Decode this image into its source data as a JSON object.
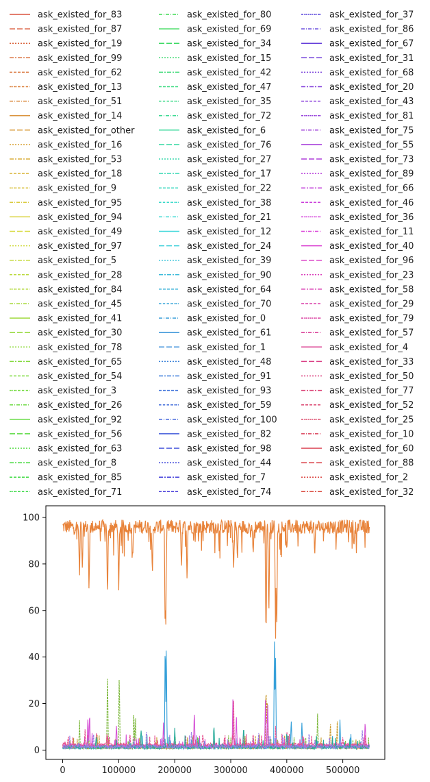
{
  "chart_data": {
    "type": "line",
    "title": "",
    "xlabel": "",
    "ylabel": "",
    "xlim": [
      -30000,
      575000
    ],
    "ylim": [
      -4,
      105
    ],
    "xticks": [
      0,
      100000,
      200000,
      300000,
      400000,
      500000
    ],
    "yticks": [
      0,
      20,
      40,
      60,
      80,
      100
    ],
    "grid": false,
    "legend_position": "top",
    "legend_columns": [
      [
        "ask_existed_for_83",
        "ask_existed_for_87",
        "ask_existed_for_19",
        "ask_existed_for_99",
        "ask_existed_for_62",
        "ask_existed_for_13",
        "ask_existed_for_51",
        "ask_existed_for_14",
        "ask_existed_for_other",
        "ask_existed_for_16",
        "ask_existed_for_53",
        "ask_existed_for_18",
        "ask_existed_for_9",
        "ask_existed_for_95",
        "ask_existed_for_94",
        "ask_existed_for_49",
        "ask_existed_for_97",
        "ask_existed_for_5",
        "ask_existed_for_28",
        "ask_existed_for_84",
        "ask_existed_for_45",
        "ask_existed_for_41",
        "ask_existed_for_30",
        "ask_existed_for_78",
        "ask_existed_for_65",
        "ask_existed_for_54",
        "ask_existed_for_3",
        "ask_existed_for_26",
        "ask_existed_for_92",
        "ask_existed_for_56",
        "ask_existed_for_63",
        "ask_existed_for_8",
        "ask_existed_for_85",
        "ask_existed_for_71"
      ],
      [
        "ask_existed_for_80",
        "ask_existed_for_69",
        "ask_existed_for_34",
        "ask_existed_for_15",
        "ask_existed_for_42",
        "ask_existed_for_47",
        "ask_existed_for_35",
        "ask_existed_for_72",
        "ask_existed_for_6",
        "ask_existed_for_76",
        "ask_existed_for_27",
        "ask_existed_for_17",
        "ask_existed_for_22",
        "ask_existed_for_38",
        "ask_existed_for_21",
        "ask_existed_for_12",
        "ask_existed_for_24",
        "ask_existed_for_39",
        "ask_existed_for_90",
        "ask_existed_for_64",
        "ask_existed_for_70",
        "ask_existed_for_0",
        "ask_existed_for_61",
        "ask_existed_for_1",
        "ask_existed_for_48",
        "ask_existed_for_91",
        "ask_existed_for_93",
        "ask_existed_for_59",
        "ask_existed_for_100",
        "ask_existed_for_82",
        "ask_existed_for_98",
        "ask_existed_for_44",
        "ask_existed_for_7",
        "ask_existed_for_74"
      ],
      [
        "ask_existed_for_37",
        "ask_existed_for_86",
        "ask_existed_for_67",
        "ask_existed_for_31",
        "ask_existed_for_68",
        "ask_existed_for_20",
        "ask_existed_for_43",
        "ask_existed_for_81",
        "ask_existed_for_75",
        "ask_existed_for_55",
        "ask_existed_for_73",
        "ask_existed_for_89",
        "ask_existed_for_66",
        "ask_existed_for_46",
        "ask_existed_for_36",
        "ask_existed_for_11",
        "ask_existed_for_40",
        "ask_existed_for_96",
        "ask_existed_for_23",
        "ask_existed_for_58",
        "ask_existed_for_29",
        "ask_existed_for_79",
        "ask_existed_for_57",
        "ask_existed_for_4",
        "ask_existed_for_33",
        "ask_existed_for_50",
        "ask_existed_for_77",
        "ask_existed_for_52",
        "ask_existed_for_25",
        "ask_existed_for_10",
        "ask_existed_for_60",
        "ask_existed_for_88",
        "ask_existed_for_2",
        "ask_existed_for_32"
      ]
    ],
    "series": [
      {
        "name": "ask_existed_for_other",
        "color": "#e8833a",
        "baseline": 96,
        "noise": 3,
        "dips": [
          [
            30000,
            73
          ],
          [
            35000,
            76
          ],
          [
            47000,
            67
          ],
          [
            80000,
            63
          ],
          [
            100000,
            64
          ],
          [
            125000,
            79
          ],
          [
            160000,
            73
          ],
          [
            183000,
            46
          ],
          [
            184000,
            50
          ],
          [
            212000,
            76
          ],
          [
            222000,
            72
          ],
          [
            305000,
            75
          ],
          [
            312000,
            79
          ],
          [
            340000,
            82
          ],
          [
            363000,
            43
          ],
          [
            368000,
            55
          ],
          [
            380000,
            45
          ],
          [
            382000,
            47
          ],
          [
            400000,
            82
          ],
          [
            450000,
            82
          ],
          [
            520000,
            85
          ]
        ]
      },
      {
        "name": "ask_existed_for_8",
        "color": "#7db83d",
        "baseline": 0.5,
        "peaks": [
          [
            30000,
            12
          ],
          [
            80000,
            34
          ],
          [
            101000,
            34
          ],
          [
            127000,
            17
          ],
          [
            130000,
            14
          ],
          [
            455000,
            14
          ]
        ]
      },
      {
        "name": "ask_existed_for_44",
        "color": "#36a0d9",
        "baseline": 0.5,
        "peaks": [
          [
            183000,
            50
          ],
          [
            185000,
            47
          ],
          [
            378000,
            45
          ],
          [
            380000,
            42
          ],
          [
            408000,
            13
          ],
          [
            427000,
            10
          ],
          [
            495000,
            12
          ]
        ]
      },
      {
        "name": "ask_existed_for_53",
        "color": "#c99a2e",
        "baseline": 0.5,
        "peaks": [
          [
            363000,
            29
          ],
          [
            365000,
            25
          ],
          [
            478000,
            11
          ],
          [
            490000,
            11
          ]
        ]
      },
      {
        "name": "ask_existed_for_29",
        "color": "#d654d6",
        "baseline": 1,
        "peaks": [
          [
            45000,
            15
          ],
          [
            48000,
            16
          ],
          [
            96000,
            11
          ],
          [
            180000,
            12
          ],
          [
            235000,
            17
          ],
          [
            304000,
            23
          ],
          [
            310000,
            14
          ],
          [
            362000,
            22
          ],
          [
            366000,
            20
          ],
          [
            540000,
            12
          ]
        ]
      },
      {
        "name": "ask_existed_for_25",
        "color": "#e64f8e",
        "baseline": 1.5,
        "peaks": [
          [
            10000,
            6
          ],
          [
            40000,
            9
          ],
          [
            60000,
            7
          ],
          [
            120000,
            6
          ],
          [
            250000,
            7
          ],
          [
            305000,
            23
          ],
          [
            340000,
            7
          ],
          [
            380000,
            9
          ],
          [
            430000,
            6
          ],
          [
            500000,
            6
          ]
        ]
      },
      {
        "name": "ask_existed_for_39",
        "color": "#27ab9a",
        "baseline": 0.5,
        "peaks": [
          [
            60000,
            6
          ],
          [
            140000,
            8
          ],
          [
            200000,
            9
          ],
          [
            270000,
            10
          ],
          [
            323000,
            10
          ],
          [
            400000,
            7
          ]
        ]
      },
      {
        "name": "ask_existed_for_43",
        "color": "#9b7de6",
        "baseline": 0.7,
        "peaks": [
          [
            55000,
            6
          ],
          [
            150000,
            7
          ],
          [
            230000,
            8
          ],
          [
            350000,
            6
          ],
          [
            440000,
            7
          ],
          [
            535000,
            8
          ]
        ]
      }
    ]
  }
}
